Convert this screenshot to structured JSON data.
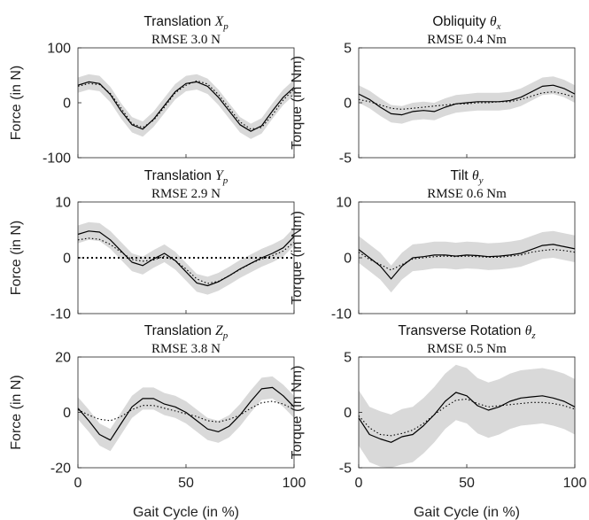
{
  "x_axis": {
    "label": "Gait Cycle (in %)",
    "ticks": [
      "0",
      "50",
      "100"
    ]
  },
  "chart_data": [
    {
      "type": "line",
      "title": {
        "text": "Translation",
        "symbol": "X",
        "subscript": "p"
      },
      "subtitle": "RMSE 3.0 N",
      "ylabel": "Force (in N)",
      "xlim": [
        0,
        100
      ],
      "ylim": [
        -100,
        100
      ],
      "yticks": [
        "100",
        "0",
        "-100"
      ],
      "zero_line": false,
      "x": [
        0,
        5,
        10,
        15,
        20,
        25,
        30,
        35,
        40,
        45,
        50,
        55,
        60,
        65,
        70,
        75,
        80,
        85,
        90,
        95,
        100
      ],
      "series": [
        {
          "style": "solid",
          "values": [
            32,
            38,
            35,
            15,
            -15,
            -40,
            -48,
            -30,
            -5,
            20,
            35,
            38,
            30,
            10,
            -15,
            -40,
            -52,
            -42,
            -15,
            10,
            28
          ]
        },
        {
          "style": "dotted",
          "values": [
            30,
            35,
            33,
            17,
            -10,
            -38,
            -45,
            -32,
            -8,
            18,
            32,
            40,
            34,
            15,
            -10,
            -35,
            -48,
            -45,
            -22,
            5,
            25
          ]
        }
      ],
      "band_halfwidth": 14
    },
    {
      "type": "line",
      "title": {
        "text": "Obliquity",
        "symbol": "θ",
        "subscript": "x"
      },
      "subtitle": "RMSE 0.4 Nm",
      "ylabel": "Torque (in Nm)",
      "xlim": [
        0,
        100
      ],
      "ylim": [
        -5,
        5
      ],
      "yticks": [
        "5",
        "0",
        "-5"
      ],
      "zero_line": false,
      "x": [
        0,
        5,
        10,
        15,
        20,
        25,
        30,
        35,
        40,
        45,
        50,
        55,
        60,
        65,
        70,
        75,
        80,
        85,
        90,
        95,
        100
      ],
      "series": [
        {
          "style": "solid",
          "values": [
            0.8,
            0.3,
            -0.4,
            -1.0,
            -1.1,
            -0.8,
            -0.7,
            -0.8,
            -0.4,
            -0.1,
            0,
            0.1,
            0.1,
            0.1,
            0.2,
            0.5,
            1.0,
            1.5,
            1.6,
            1.3,
            0.8
          ]
        },
        {
          "style": "dotted",
          "values": [
            0.3,
            0.1,
            -0.2,
            -0.5,
            -0.6,
            -0.5,
            -0.4,
            -0.3,
            -0.2,
            -0.1,
            -0.1,
            0,
            0,
            0.1,
            0.1,
            0.3,
            0.6,
            0.9,
            1.0,
            0.8,
            0.5
          ]
        }
      ],
      "band_halfwidth": 0.8
    },
    {
      "type": "line",
      "title": {
        "text": "Translation",
        "symbol": "Y",
        "subscript": "p"
      },
      "subtitle": "RMSE 2.9 N",
      "ylabel": "Force (in N)",
      "xlim": [
        0,
        100
      ],
      "ylim": [
        -10,
        10
      ],
      "yticks": [
        "10",
        "0",
        "-10"
      ],
      "zero_line": true,
      "x": [
        0,
        5,
        10,
        15,
        20,
        25,
        30,
        35,
        40,
        45,
        50,
        55,
        60,
        65,
        70,
        75,
        80,
        85,
        90,
        95,
        100
      ],
      "series": [
        {
          "style": "solid",
          "values": [
            4.2,
            4.8,
            4.6,
            3.2,
            1.2,
            -0.8,
            -1.4,
            -0.2,
            0.8,
            -0.5,
            -2.5,
            -4.5,
            -5.0,
            -4.3,
            -3.2,
            -2.0,
            -1.0,
            0,
            0.8,
            1.8,
            3.8
          ]
        },
        {
          "style": "dotted",
          "values": [
            3.2,
            3.5,
            3.3,
            2.4,
            1.0,
            -0.3,
            -0.6,
            -0.4,
            0.3,
            -0.5,
            -2.0,
            -3.8,
            -4.6,
            -4.2,
            -3.2,
            -2.1,
            -1.0,
            -0.2,
            0.4,
            1.2,
            2.8
          ]
        }
      ],
      "band_halfwidth": 1.6
    },
    {
      "type": "line",
      "title": {
        "text": "Tilt",
        "symbol": "θ",
        "subscript": "y"
      },
      "subtitle": "RMSE 0.6 Nm",
      "ylabel": "Torque (in Nm)",
      "xlim": [
        0,
        100
      ],
      "ylim": [
        -10,
        10
      ],
      "yticks": [
        "10",
        "0",
        "-10"
      ],
      "zero_line": false,
      "x": [
        0,
        5,
        10,
        15,
        20,
        25,
        30,
        35,
        40,
        45,
        50,
        55,
        60,
        65,
        70,
        75,
        80,
        85,
        90,
        95,
        100
      ],
      "series": [
        {
          "style": "solid",
          "values": [
            1.5,
            0,
            -1.5,
            -3.8,
            -1.5,
            0,
            0.2,
            0.5,
            0.5,
            0.3,
            0.5,
            0.4,
            0.2,
            0.3,
            0.5,
            0.8,
            1.5,
            2.2,
            2.4,
            2.0,
            1.6
          ]
        },
        {
          "style": "dotted",
          "values": [
            1.0,
            -0.3,
            -1.2,
            -2.2,
            -1.2,
            -0.2,
            0,
            0.2,
            0.3,
            0.2,
            0.3,
            0.2,
            0.1,
            0.1,
            0.3,
            0.5,
            1.0,
            1.3,
            1.5,
            1.3,
            1.0
          ]
        }
      ],
      "band_halfwidth": 2.4
    },
    {
      "type": "line",
      "title": {
        "text": "Translation",
        "symbol": "Z",
        "subscript": "p"
      },
      "subtitle": "RMSE 3.8 N",
      "ylabel": "Force (in N)",
      "xlim": [
        0,
        100
      ],
      "ylim": [
        -20,
        20
      ],
      "yticks": [
        "20",
        "0",
        "-20"
      ],
      "zero_line": false,
      "x": [
        0,
        5,
        10,
        15,
        20,
        25,
        30,
        35,
        40,
        45,
        50,
        55,
        60,
        65,
        70,
        75,
        80,
        85,
        90,
        95,
        100
      ],
      "series": [
        {
          "style": "solid",
          "values": [
            1.5,
            -3,
            -8,
            -10,
            -4,
            2,
            5,
            5,
            3,
            2,
            0,
            -3,
            -6,
            -7,
            -5,
            -1,
            4,
            8.5,
            9,
            6,
            2
          ]
        },
        {
          "style": "dotted",
          "values": [
            1,
            -1,
            -2.5,
            -3,
            -1.5,
            1,
            2.5,
            2.5,
            1.5,
            0.5,
            -0.5,
            -1.5,
            -3,
            -3.5,
            -2.5,
            -1,
            1.5,
            3.5,
            4,
            3,
            1
          ]
        }
      ],
      "band_halfwidth": 4
    },
    {
      "type": "line",
      "title": {
        "text": "Transverse Rotation",
        "symbol": "θ",
        "subscript": "z"
      },
      "subtitle": "RMSE 0.5 Nm",
      "ylabel": "Torque (in Nm)",
      "xlim": [
        0,
        100
      ],
      "ylim": [
        -5,
        5
      ],
      "yticks": [
        "5",
        "0",
        "-5"
      ],
      "zero_line": false,
      "x": [
        0,
        5,
        10,
        15,
        20,
        25,
        30,
        35,
        40,
        45,
        50,
        55,
        60,
        65,
        70,
        75,
        80,
        85,
        90,
        95,
        100
      ],
      "series": [
        {
          "style": "solid",
          "values": [
            -0.5,
            -2.0,
            -2.4,
            -2.7,
            -2.2,
            -2.0,
            -1.2,
            -0.2,
            1.0,
            1.8,
            1.5,
            0.6,
            0.2,
            0.5,
            1.0,
            1.3,
            1.4,
            1.5,
            1.3,
            1.0,
            0.5
          ]
        },
        {
          "style": "dotted",
          "values": [
            -0.3,
            -1.4,
            -2.0,
            -2.1,
            -1.9,
            -1.6,
            -1.0,
            -0.2,
            0.5,
            1.1,
            1.2,
            0.8,
            0.5,
            0.6,
            0.7,
            0.8,
            0.9,
            0.9,
            0.8,
            0.6,
            0.3
          ]
        }
      ],
      "band_halfwidth": 2.5
    }
  ]
}
